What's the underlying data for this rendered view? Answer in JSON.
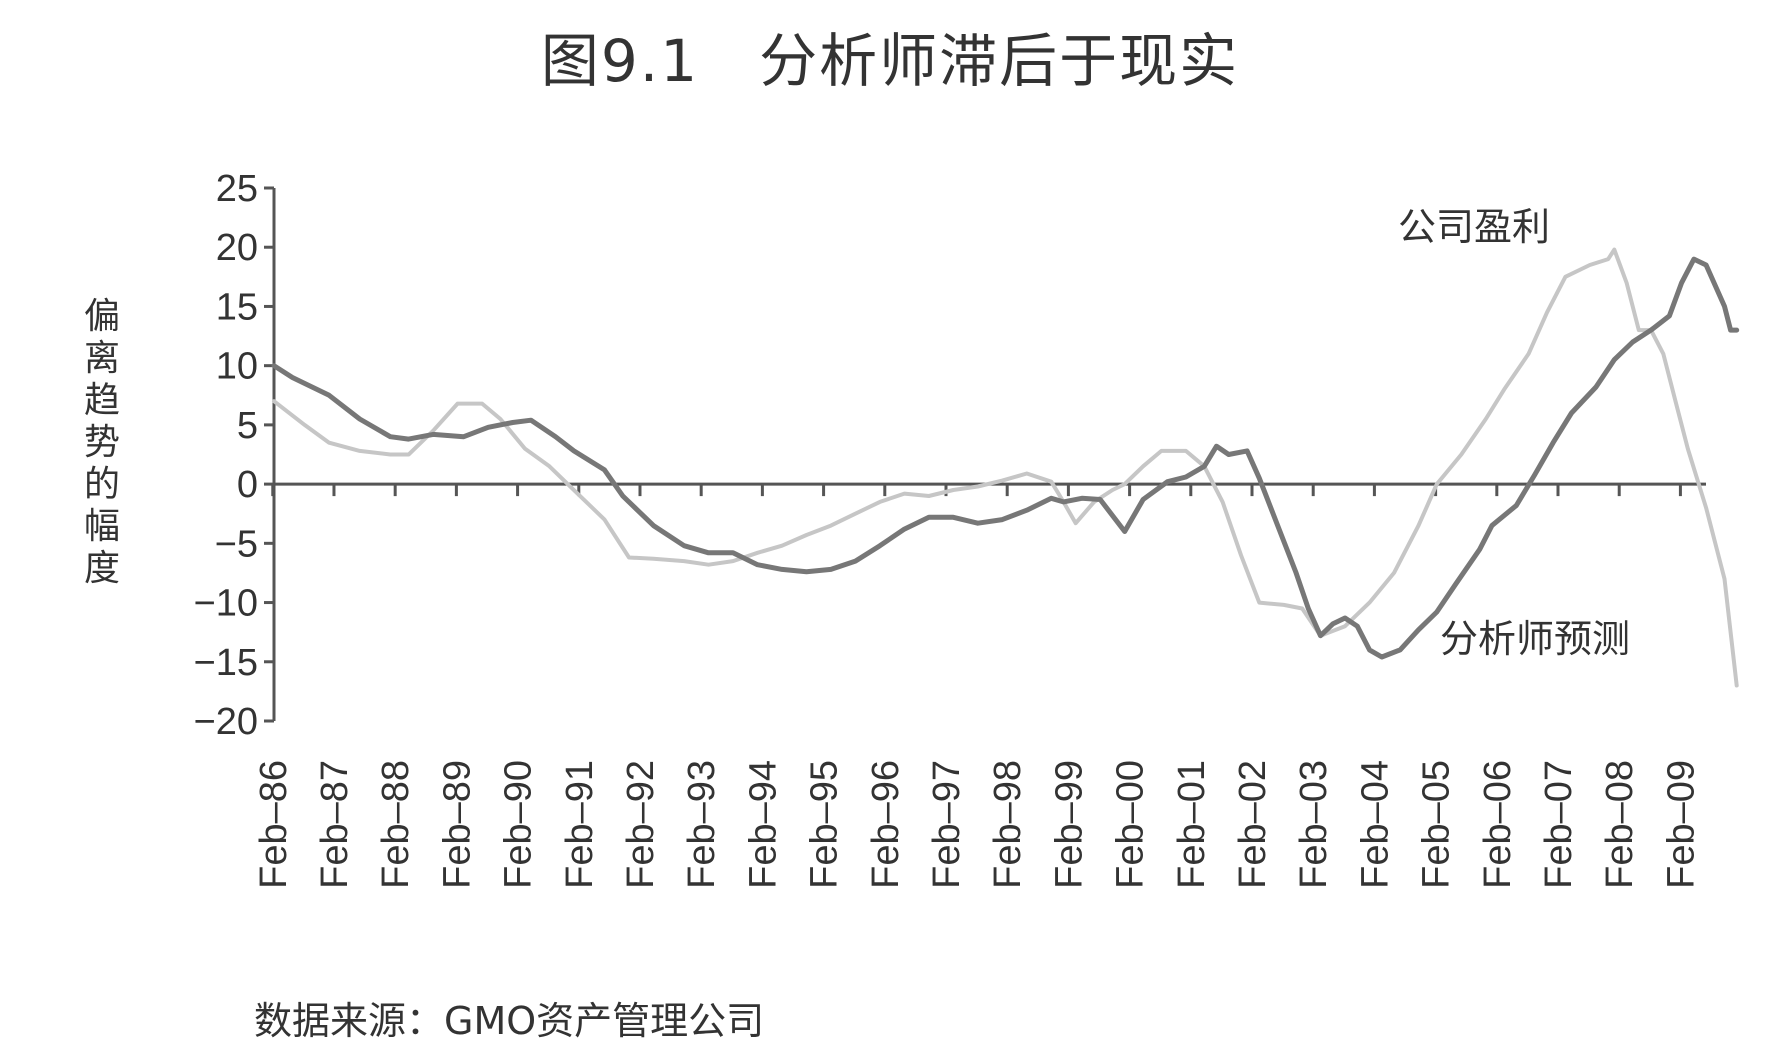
{
  "title": {
    "figure_number": "图9.1",
    "text": "分析师滞后于现实"
  },
  "source": "数据来源：GMO资产管理公司",
  "colors": {
    "forecast": "#777777",
    "earnings": "#c6c6c6",
    "axis": "#555555"
  },
  "chart_data": {
    "type": "line",
    "ylabel": "偏离趋势的幅度",
    "ylim": [
      -20,
      25
    ],
    "yticks": [
      25,
      20,
      15,
      10,
      5,
      0,
      -5,
      -10,
      -15,
      -20
    ],
    "ytick_labels": [
      "25",
      "20",
      "15",
      "10",
      "5",
      "0",
      "−5",
      "−10",
      "−15",
      "−20"
    ],
    "xlim": [
      1986.1,
      2009.4
    ],
    "xticks": [
      1986,
      1987,
      1988,
      1989,
      1990,
      1991,
      1992,
      1993,
      1994,
      1995,
      1996,
      1997,
      1998,
      1999,
      2000,
      2001,
      2002,
      2003,
      2004,
      2005,
      2006,
      2007,
      2008,
      2009
    ],
    "xtick_labels": [
      "Feb–86",
      "Feb–87",
      "Feb–88",
      "Feb–89",
      "Feb–90",
      "Feb–91",
      "Feb–92",
      "Feb–93",
      "Feb–94",
      "Feb–95",
      "Feb–96",
      "Feb–97",
      "Feb–98",
      "Feb–99",
      "Feb–00",
      "Feb–01",
      "Feb–02",
      "Feb–03",
      "Feb–04",
      "Feb–05",
      "Feb–06",
      "Feb–07",
      "Feb–08",
      "Feb–09"
    ],
    "grid": false,
    "series": [
      {
        "name": "分析师预测",
        "key": "forecast",
        "points": [
          [
            1986.1,
            10
          ],
          [
            1986.4,
            9
          ],
          [
            1987.0,
            7.5
          ],
          [
            1987.5,
            5.5
          ],
          [
            1988.0,
            4
          ],
          [
            1988.3,
            3.8
          ],
          [
            1988.7,
            4.2
          ],
          [
            1989.2,
            4.0
          ],
          [
            1989.6,
            4.8
          ],
          [
            1990.0,
            5.2
          ],
          [
            1990.3,
            5.4
          ],
          [
            1990.7,
            4.0
          ],
          [
            1991.0,
            2.8
          ],
          [
            1991.5,
            1.2
          ],
          [
            1991.8,
            -1.0
          ],
          [
            1992.3,
            -3.5
          ],
          [
            1992.8,
            -5.2
          ],
          [
            1993.2,
            -5.8
          ],
          [
            1993.6,
            -5.8
          ],
          [
            1994.0,
            -6.8
          ],
          [
            1994.4,
            -7.2
          ],
          [
            1994.8,
            -7.4
          ],
          [
            1995.2,
            -7.2
          ],
          [
            1995.6,
            -6.5
          ],
          [
            1996.0,
            -5.2
          ],
          [
            1996.4,
            -3.8
          ],
          [
            1996.8,
            -2.8
          ],
          [
            1997.2,
            -2.8
          ],
          [
            1997.6,
            -3.3
          ],
          [
            1998.0,
            -3.0
          ],
          [
            1998.4,
            -2.2
          ],
          [
            1998.8,
            -1.2
          ],
          [
            1999.0,
            -1.5
          ],
          [
            1999.3,
            -1.2
          ],
          [
            1999.6,
            -1.3
          ],
          [
            2000.0,
            -4.0
          ],
          [
            2000.3,
            -1.3
          ],
          [
            2000.7,
            0.2
          ],
          [
            2001.0,
            0.6
          ],
          [
            2001.3,
            1.5
          ],
          [
            2001.5,
            3.2
          ],
          [
            2001.7,
            2.5
          ],
          [
            2002.0,
            2.8
          ],
          [
            2002.2,
            0.5
          ],
          [
            2002.5,
            -3.5
          ],
          [
            2002.8,
            -7.5
          ],
          [
            2003.0,
            -10.5
          ],
          [
            2003.2,
            -12.8
          ],
          [
            2003.4,
            -11.8
          ],
          [
            2003.6,
            -11.3
          ],
          [
            2003.8,
            -12
          ],
          [
            2004.0,
            -14.0
          ],
          [
            2004.2,
            -14.6
          ],
          [
            2004.5,
            -14.0
          ],
          [
            2004.8,
            -12.3
          ],
          [
            2005.1,
            -10.8
          ],
          [
            2005.4,
            -8.5
          ],
          [
            2005.8,
            -5.5
          ],
          [
            2006.0,
            -3.5
          ],
          [
            2006.4,
            -1.8
          ],
          [
            2006.7,
            0.8
          ],
          [
            2007.0,
            3.5
          ],
          [
            2007.3,
            6.0
          ],
          [
            2007.7,
            8.2
          ],
          [
            2008.0,
            10.5
          ],
          [
            2008.3,
            12.0
          ],
          [
            2008.6,
            13.0
          ],
          [
            2008.9,
            14.2
          ],
          [
            2009.1,
            17.0
          ],
          [
            2009.3,
            19.0
          ],
          [
            2009.5,
            18.5
          ],
          [
            2009.8,
            15.0
          ],
          [
            2009.9,
            13.0
          ],
          [
            2010.0,
            13.0
          ]
        ]
      },
      {
        "name": "公司盈利",
        "key": "earnings",
        "points": [
          [
            1986.1,
            7
          ],
          [
            1986.6,
            5
          ],
          [
            1987.0,
            3.5
          ],
          [
            1987.5,
            2.8
          ],
          [
            1988.0,
            2.5
          ],
          [
            1988.3,
            2.5
          ],
          [
            1988.7,
            4.5
          ],
          [
            1989.1,
            6.8
          ],
          [
            1989.5,
            6.8
          ],
          [
            1989.8,
            5.5
          ],
          [
            1990.2,
            3.0
          ],
          [
            1990.6,
            1.5
          ],
          [
            1991.0,
            -0.5
          ],
          [
            1991.5,
            -3.0
          ],
          [
            1991.9,
            -6.2
          ],
          [
            1992.3,
            -6.3
          ],
          [
            1992.8,
            -6.5
          ],
          [
            1993.2,
            -6.8
          ],
          [
            1993.6,
            -6.5
          ],
          [
            1994.0,
            -5.8
          ],
          [
            1994.4,
            -5.2
          ],
          [
            1994.8,
            -4.3
          ],
          [
            1995.2,
            -3.5
          ],
          [
            1995.6,
            -2.5
          ],
          [
            1996.0,
            -1.5
          ],
          [
            1996.4,
            -0.8
          ],
          [
            1996.8,
            -1.0
          ],
          [
            1997.2,
            -0.5
          ],
          [
            1997.6,
            -0.2
          ],
          [
            1998.0,
            0.3
          ],
          [
            1998.4,
            0.9
          ],
          [
            1998.8,
            0.2
          ],
          [
            1999.0,
            -1.5
          ],
          [
            1999.2,
            -3.3
          ],
          [
            1999.5,
            -1.5
          ],
          [
            1999.8,
            -0.5
          ],
          [
            2000.0,
            0.0
          ],
          [
            2000.3,
            1.5
          ],
          [
            2000.6,
            2.8
          ],
          [
            2001.0,
            2.8
          ],
          [
            2001.3,
            1.5
          ],
          [
            2001.6,
            -1.5
          ],
          [
            2001.9,
            -6.0
          ],
          [
            2002.2,
            -10.0
          ],
          [
            2002.6,
            -10.2
          ],
          [
            2002.9,
            -10.5
          ],
          [
            2003.2,
            -12.8
          ],
          [
            2003.6,
            -12.0
          ],
          [
            2004.0,
            -10.0
          ],
          [
            2004.4,
            -7.5
          ],
          [
            2004.8,
            -3.5
          ],
          [
            2005.1,
            0.0
          ],
          [
            2005.5,
            2.5
          ],
          [
            2005.9,
            5.5
          ],
          [
            2006.2,
            8.0
          ],
          [
            2006.6,
            11.0
          ],
          [
            2006.9,
            14.5
          ],
          [
            2007.2,
            17.5
          ],
          [
            2007.6,
            18.5
          ],
          [
            2007.9,
            19.0
          ],
          [
            2008.0,
            19.8
          ],
          [
            2008.2,
            17.0
          ],
          [
            2008.4,
            13.0
          ],
          [
            2008.6,
            13.0
          ],
          [
            2008.8,
            11.0
          ],
          [
            2009.0,
            7.0
          ],
          [
            2009.2,
            3.0
          ],
          [
            2009.5,
            -2.0
          ],
          [
            2009.8,
            -8.0
          ],
          [
            2010.0,
            -17.0
          ]
        ]
      }
    ],
    "annotations": [
      {
        "text": "公司盈利",
        "series": "earnings"
      },
      {
        "text": "分析师预测",
        "series": "forecast"
      }
    ]
  }
}
